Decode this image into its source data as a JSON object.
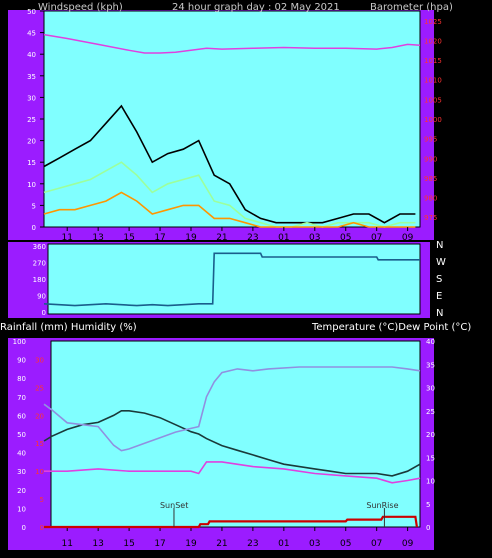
{
  "header": {
    "wind_label": "Windspeed (kph)",
    "title": "24 hour graph day : 02 May 2021",
    "baro_label": "Barometer (hpa)"
  },
  "compass_labels": [
    "N",
    "W",
    "S",
    "E",
    "N"
  ],
  "lower_header": {
    "left_label": "Rainfall (mm)  Humidity (%)",
    "right_label": "Temperature (°C)Dew Point (°C)"
  },
  "x_tick_labels": [
    "11",
    "13",
    "15",
    "17",
    "19",
    "21",
    "23",
    "01",
    "03",
    "05",
    "07",
    "09"
  ],
  "colors": {
    "plot_bg": "#80ffff",
    "frame": "#9b1cff",
    "wind_gust": "#000000",
    "wind_avg": "#9cff9c",
    "wind_low": "#ff9600",
    "barometer": "#e040e0",
    "direction": "#1a5e8c",
    "temperature": "#1a3a3a",
    "humidity": "#9090e0",
    "dew_point": "#e040e0",
    "rainfall": "#cc0000",
    "axis_text_left": "#ffffff",
    "axis_text_red": "#ff3333"
  },
  "chart_data": [
    {
      "type": "line",
      "x_ticks": [
        "11",
        "13",
        "15",
        "17",
        "19",
        "21",
        "23",
        "01",
        "03",
        "05",
        "07",
        "09"
      ],
      "y_left": {
        "label": "Windspeed (kph)",
        "ticks": [
          0,
          5,
          10,
          15,
          20,
          25,
          30,
          35,
          40,
          45,
          50
        ],
        "ylim": [
          0,
          50
        ]
      },
      "y_right": {
        "label": "Barometer (hpa)",
        "ticks": [
          975,
          980,
          985,
          990,
          995,
          1000,
          1005,
          1010,
          1015,
          1020,
          1025
        ],
        "ylim": [
          972.5,
          1027.5
        ]
      },
      "series": [
        {
          "axis": "left",
          "x": [
            9.5,
            10.5,
            11.5,
            12.5,
            13.5,
            14.5,
            15.5,
            16.5,
            17.5,
            18.5,
            19.5,
            20.5,
            21.5,
            22.5,
            23.5,
            24.5,
            25.5,
            26.5,
            27.5,
            28.5,
            29.5,
            30.5,
            31.5,
            32.5,
            33.5
          ],
          "y": [
            14,
            16,
            18,
            20,
            24,
            28,
            22,
            15,
            17,
            18,
            20,
            12,
            10,
            4,
            2,
            1,
            1,
            1,
            1,
            2,
            3,
            3,
            1,
            3,
            3
          ]
        },
        {
          "axis": "left",
          "x": [
            9.5,
            10.5,
            11.5,
            12.5,
            13.5,
            14.5,
            15.5,
            16.5,
            17.5,
            18.5,
            19.5,
            20.5,
            21.5,
            22.5,
            23.5,
            24.5,
            25.5,
            26.5,
            27.5,
            28.5,
            29.5,
            30.5,
            31.5,
            32.5,
            33.5
          ],
          "y": [
            8,
            9,
            10,
            11,
            13,
            15,
            12,
            8,
            10,
            11,
            12,
            6,
            5,
            2,
            1,
            0,
            0,
            1,
            0,
            1,
            1,
            1,
            0,
            1,
            1
          ]
        },
        {
          "axis": "left",
          "x": [
            9.5,
            10.5,
            11.5,
            12.5,
            13.5,
            14.5,
            15.5,
            16.5,
            17.5,
            18.5,
            19.5,
            20.5,
            21.5,
            22.5,
            23.5,
            24.5,
            25.5,
            26.5,
            27.5,
            28.5,
            29.5,
            30.5,
            31.5,
            32.5,
            33.5
          ],
          "y": [
            3,
            4,
            4,
            5,
            6,
            8,
            6,
            3,
            4,
            5,
            5,
            2,
            2,
            1,
            0,
            0,
            0,
            0,
            0,
            0,
            1,
            0,
            0,
            0,
            0
          ]
        },
        {
          "axis": "right",
          "x": [
            9.5,
            11,
            13,
            15,
            16,
            17,
            18,
            19,
            20,
            21,
            23,
            25,
            27,
            29,
            31,
            32,
            33,
            33.8
          ],
          "y": [
            1021.5,
            1020.5,
            1019,
            1017.5,
            1016.8,
            1016.8,
            1017,
            1017.5,
            1018,
            1017.8,
            1018,
            1018.2,
            1018,
            1018,
            1017.8,
            1018.2,
            1019,
            1018.8
          ]
        }
      ]
    },
    {
      "type": "line",
      "x_ticks": [
        "11",
        "13",
        "15",
        "17",
        "19",
        "21",
        "23",
        "01",
        "03",
        "05",
        "07",
        "09"
      ],
      "y_right_labels": [
        "N",
        "W",
        "S",
        "E",
        "N"
      ],
      "y_left": {
        "ticks": [
          0,
          90,
          180,
          270,
          360
        ],
        "ylim": [
          0,
          360
        ]
      },
      "series": [
        {
          "x": [
            9.5,
            10.5,
            11.5,
            12.5,
            13.5,
            14.5,
            15.5,
            16.5,
            17.5,
            18.5,
            19.5,
            20.4,
            20.5,
            23.5,
            23.6,
            31.0,
            31.1,
            33.8
          ],
          "y": [
            45,
            40,
            35,
            40,
            45,
            40,
            35,
            40,
            35,
            40,
            45,
            45,
            320,
            320,
            300,
            300,
            285,
            285
          ]
        }
      ]
    },
    {
      "type": "line",
      "x_ticks": [
        "11",
        "13",
        "15",
        "17",
        "19",
        "21",
        "23",
        "01",
        "03",
        "05",
        "07",
        "09"
      ],
      "y_left": {
        "label": "Rainfall (mm)  Humidity (%)",
        "ticks": [
          0,
          10,
          20,
          30,
          40,
          50,
          60,
          70,
          80,
          90,
          100
        ],
        "ylim": [
          0,
          100
        ]
      },
      "y_left_inner": {
        "ticks": [
          0,
          5,
          10,
          15,
          20,
          25,
          30
        ],
        "ylim": [
          0,
          33.3
        ]
      },
      "y_right": {
        "label": "Temperature (°C)Dew Point (°C)",
        "ticks": [
          0,
          5,
          10,
          15,
          20,
          25,
          30,
          35,
          40
        ],
        "ylim": [
          0,
          40
        ]
      },
      "annotations": [
        "SunSet",
        "SunRise"
      ],
      "series": [
        {
          "axis": "right",
          "x": [
            9.5,
            10,
            11,
            12,
            13,
            14,
            14.5,
            15,
            16,
            17,
            18,
            19,
            19.5,
            20,
            21,
            22,
            23,
            24,
            25,
            26,
            27,
            28,
            29,
            30,
            31,
            32,
            33,
            33.8
          ],
          "y": [
            18.5,
            19.5,
            21,
            22,
            22.5,
            24,
            25,
            25,
            24.5,
            23.5,
            22,
            20.5,
            20,
            19,
            17.5,
            16.5,
            15.5,
            14.5,
            13.5,
            13,
            12.5,
            12,
            11.5,
            11.5,
            11.5,
            11,
            12,
            13.5
          ]
        },
        {
          "axis": "left",
          "x": [
            9.5,
            10,
            11,
            12,
            13,
            14,
            14.5,
            15,
            16,
            17,
            18,
            19,
            19.5,
            20,
            20.5,
            21,
            22,
            23,
            24,
            26,
            28,
            30,
            32,
            33,
            33.8
          ],
          "y": [
            66,
            63,
            56,
            55,
            54,
            44,
            41,
            42,
            45,
            48,
            51,
            53,
            54,
            70,
            78,
            83,
            85,
            84,
            85,
            86,
            86,
            86,
            86,
            85,
            84
          ]
        },
        {
          "axis": "right",
          "x": [
            9.5,
            11,
            13,
            15,
            17,
            19,
            19.5,
            20,
            21,
            23,
            25,
            27,
            29,
            31,
            32,
            33,
            33.8
          ],
          "y": [
            12,
            12,
            12.5,
            12,
            12,
            12,
            11.5,
            14,
            14,
            13,
            12.5,
            11.5,
            11,
            10.5,
            9.5,
            10,
            10.5
          ]
        },
        {
          "axis": "left",
          "x": [
            9.5,
            19.5,
            19.6,
            20.1,
            20.2,
            29,
            29.1,
            31.3,
            31.4,
            33.5,
            33.6
          ],
          "y": [
            0,
            0,
            1.5,
            1.5,
            3,
            3,
            4,
            4,
            5.5,
            5.5,
            0
          ]
        }
      ]
    }
  ]
}
